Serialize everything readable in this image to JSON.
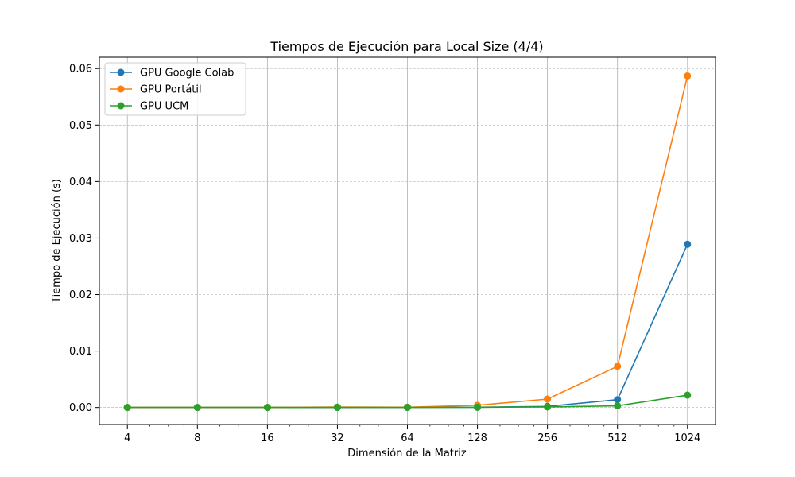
{
  "chart_data": {
    "type": "line",
    "title": "Tiempos de Ejecución para Local Size (4/4)",
    "xlabel": "Dimensión de la Matriz",
    "ylabel": "Tiempo de Ejecución (s)",
    "x_scale": "log2",
    "x": [
      4,
      8,
      16,
      32,
      64,
      128,
      256,
      512,
      1024
    ],
    "x_tick_labels": [
      "4",
      "8",
      "16",
      "32",
      "64",
      "128",
      "256",
      "512",
      "1024"
    ],
    "ylim": [
      -0.003,
      0.062
    ],
    "y_ticks": [
      0.0,
      0.01,
      0.02,
      0.03,
      0.04,
      0.05,
      0.06
    ],
    "y_tick_labels": [
      "0.00",
      "0.01",
      "0.02",
      "0.03",
      "0.04",
      "0.05",
      "0.06"
    ],
    "grid": true,
    "legend_position": "top-left",
    "series": [
      {
        "name": "GPU Google Colab",
        "color": "#1f77b4",
        "values": [
          1e-05,
          1e-05,
          1e-05,
          2e-05,
          3e-05,
          5e-05,
          0.0002,
          0.0014,
          0.0289
        ]
      },
      {
        "name": "GPU Portátil",
        "color": "#ff7f0e",
        "values": [
          1e-05,
          1e-05,
          2e-05,
          8e-05,
          5e-05,
          0.0004,
          0.0015,
          0.0073,
          0.0587
        ]
      },
      {
        "name": "GPU UCM",
        "color": "#2ca02c",
        "values": [
          1e-05,
          1e-05,
          1e-05,
          2e-05,
          2e-05,
          4e-05,
          0.0001,
          0.0003,
          0.0022
        ]
      }
    ]
  }
}
